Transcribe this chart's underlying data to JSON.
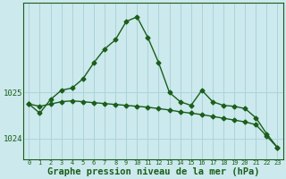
{
  "title": "Graphe pression niveau de la mer (hPa)",
  "bg_color": "#cce9ed",
  "grid_color": "#aad4d9",
  "line_color": "#1a5e1a",
  "x_labels": [
    "0",
    "1",
    "2",
    "3",
    "4",
    "5",
    "6",
    "7",
    "8",
    "9",
    "10",
    "11",
    "12",
    "13",
    "14",
    "15",
    "16",
    "17",
    "18",
    "19",
    "20",
    "21",
    "22",
    "23"
  ],
  "x_values": [
    0,
    1,
    2,
    3,
    4,
    5,
    6,
    7,
    8,
    9,
    10,
    11,
    12,
    13,
    14,
    15,
    16,
    17,
    18,
    19,
    20,
    21,
    22,
    23
  ],
  "series1": [
    1024.75,
    1024.55,
    1024.85,
    1025.05,
    1025.1,
    1025.3,
    1025.65,
    1025.95,
    1026.15,
    1026.55,
    1026.65,
    1026.2,
    1025.65,
    1025.0,
    1024.8,
    1024.72,
    1025.05,
    1024.8,
    1024.72,
    1024.7,
    1024.65,
    1024.45,
    1024.1,
    1023.8
  ],
  "series2": [
    1024.75,
    1024.7,
    1024.75,
    1024.8,
    1024.82,
    1024.8,
    1024.78,
    1024.76,
    1024.74,
    1024.72,
    1024.7,
    1024.68,
    1024.65,
    1024.62,
    1024.58,
    1024.55,
    1024.52,
    1024.48,
    1024.44,
    1024.4,
    1024.36,
    1024.3,
    1024.05,
    1023.8
  ],
  "ylim_min": 1023.55,
  "ylim_max": 1026.95,
  "yticks": [
    1024.0,
    1025.0
  ],
  "marker": "D",
  "marker_size": 2.5,
  "line_width": 1.0,
  "title_fontsize": 7.5
}
